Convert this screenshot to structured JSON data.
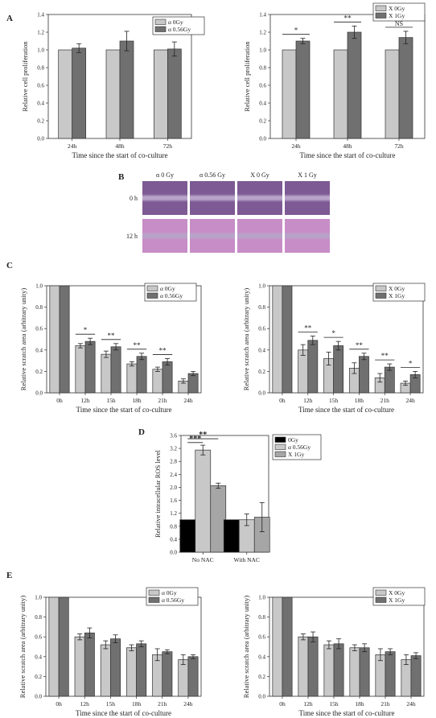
{
  "panel_labels": {
    "A": "A",
    "B": "B",
    "C": "C",
    "D": "D",
    "E": "E"
  },
  "colors": {
    "light": "#c8c8c8",
    "mid": "#a6a6a6",
    "dark": "#707070",
    "black": "#000000"
  },
  "chart_data": [
    {
      "id": "A-left",
      "type": "bar",
      "panel": "A",
      "categories": [
        "24h",
        "48h",
        "72h"
      ],
      "series": [
        {
          "name": "α 0Gy",
          "values": [
            1.0,
            1.0,
            1.0
          ],
          "errors": [
            0,
            0,
            0
          ],
          "color": "light"
        },
        {
          "name": "α 0.56Gy",
          "values": [
            1.02,
            1.1,
            1.01
          ],
          "errors": [
            0.05,
            0.11,
            0.08
          ],
          "color": "dark"
        }
      ],
      "ylabel": "Relative cell proliferation",
      "xlabel": "Time since the start of co-culture",
      "ylim": [
        0,
        1.4
      ],
      "yticks": [
        "0.0",
        "0.2",
        "0.4",
        "0.6",
        "0.8",
        "1.0",
        "1.2",
        "1.4"
      ],
      "annotations": [],
      "legend": "top-right"
    },
    {
      "id": "A-right",
      "type": "bar",
      "panel": "A",
      "categories": [
        "24h",
        "48h",
        "72h"
      ],
      "series": [
        {
          "name": "X 0Gy",
          "values": [
            1.0,
            1.0,
            1.0
          ],
          "errors": [
            0,
            0,
            0
          ],
          "color": "light"
        },
        {
          "name": "X 1Gy",
          "values": [
            1.1,
            1.2,
            1.14
          ],
          "errors": [
            0.03,
            0.07,
            0.07
          ],
          "color": "dark"
        }
      ],
      "ylabel": "Relative cell proliferation",
      "xlabel": "Time since the start of co-culture",
      "ylim": [
        0,
        1.4
      ],
      "yticks": [
        "0.0",
        "0.2",
        "0.4",
        "0.6",
        "0.8",
        "1.0",
        "1.2",
        "1.4"
      ],
      "annotations": [
        {
          "category": 0,
          "text": "*"
        },
        {
          "category": 1,
          "text": "**"
        },
        {
          "category": 2,
          "text": "NS"
        }
      ],
      "legend": "top-right"
    },
    {
      "id": "C-left",
      "type": "bar",
      "panel": "C",
      "categories": [
        "0h",
        "12h",
        "15h",
        "18h",
        "21h",
        "24h"
      ],
      "series": [
        {
          "name": "α 0Gy",
          "values": [
            1.0,
            0.44,
            0.36,
            0.27,
            0.22,
            0.11
          ],
          "errors": [
            0,
            0.02,
            0.03,
            0.02,
            0.02,
            0.02
          ],
          "color": "light"
        },
        {
          "name": "α 0.56Gy",
          "values": [
            1.0,
            0.48,
            0.43,
            0.34,
            0.29,
            0.18
          ],
          "errors": [
            0,
            0.03,
            0.03,
            0.03,
            0.03,
            0.02
          ],
          "color": "dark"
        }
      ],
      "ylabel": "Relative scratch area (arbitrary unity)",
      "xlabel": "Time since the start of co-culture",
      "ylim": [
        0,
        1.0
      ],
      "yticks": [
        "0.0",
        "0.2",
        "0.4",
        "0.6",
        "0.8",
        "1.0"
      ],
      "annotations": [
        {
          "category": 1,
          "text": "*"
        },
        {
          "category": 2,
          "text": "**"
        },
        {
          "category": 3,
          "text": "**"
        },
        {
          "category": 4,
          "text": "**"
        }
      ],
      "legend": "top-right"
    },
    {
      "id": "C-right",
      "type": "bar",
      "panel": "C",
      "categories": [
        "0h",
        "12h",
        "15h",
        "18h",
        "21h",
        "24h"
      ],
      "series": [
        {
          "name": "X 0Gy",
          "values": [
            1.0,
            0.4,
            0.32,
            0.23,
            0.14,
            0.09
          ],
          "errors": [
            0,
            0.05,
            0.06,
            0.05,
            0.04,
            0.02
          ],
          "color": "light"
        },
        {
          "name": "X 1Gy",
          "values": [
            1.0,
            0.49,
            0.44,
            0.34,
            0.24,
            0.17
          ],
          "errors": [
            0,
            0.04,
            0.04,
            0.03,
            0.03,
            0.03
          ],
          "color": "dark"
        }
      ],
      "ylabel": "Relative scratch area (arbitrary unity)",
      "xlabel": "Time since the start of co-culture",
      "ylim": [
        0,
        1.0
      ],
      "yticks": [
        "0.0",
        "0.2",
        "0.4",
        "0.6",
        "0.8",
        "1.0"
      ],
      "annotations": [
        {
          "category": 1,
          "text": "**"
        },
        {
          "category": 2,
          "text": "*"
        },
        {
          "category": 3,
          "text": "**"
        },
        {
          "category": 4,
          "text": "**"
        },
        {
          "category": 5,
          "text": "*"
        }
      ],
      "legend": "top-right"
    },
    {
      "id": "D",
      "type": "bar",
      "panel": "D",
      "categories": [
        "No NAC",
        "With NAC"
      ],
      "series": [
        {
          "name": "0Gy",
          "values": [
            1.0,
            1.0
          ],
          "errors": [
            0,
            0
          ],
          "color": "black"
        },
        {
          "name": "α 0.56Gy",
          "values": [
            3.15,
            1.0
          ],
          "errors": [
            0.15,
            0.18
          ],
          "color": "light"
        },
        {
          "name": "X 1Gy",
          "values": [
            2.05,
            1.08
          ],
          "errors": [
            0.08,
            0.45
          ],
          "color": "mid"
        }
      ],
      "ylabel": "Relative intracellular ROS level",
      "xlabel": "",
      "ylim": [
        0,
        3.6
      ],
      "yticks": [
        "0.0",
        "0.4",
        "0.8",
        "1.2",
        "1.6",
        "2.0",
        "2.4",
        "2.8",
        "3.2",
        "3.6"
      ],
      "brackets": [
        {
          "text": "***",
          "from": 0,
          "to": 1,
          "level": 3.38
        },
        {
          "text": "**",
          "from": 0,
          "to": 2,
          "level": 3.5
        }
      ],
      "legend": "top-right"
    },
    {
      "id": "E-left",
      "type": "bar",
      "panel": "E",
      "categories": [
        "0h",
        "12h",
        "15h",
        "18h",
        "21h",
        "24h"
      ],
      "series": [
        {
          "name": "α 0Gy",
          "values": [
            1.0,
            0.6,
            0.52,
            0.49,
            0.42,
            0.37
          ],
          "errors": [
            0,
            0.03,
            0.04,
            0.03,
            0.06,
            0.05
          ],
          "color": "light"
        },
        {
          "name": "α 0.56Gy",
          "values": [
            1.0,
            0.64,
            0.58,
            0.53,
            0.45,
            0.4
          ],
          "errors": [
            0,
            0.05,
            0.04,
            0.03,
            0.02,
            0.02
          ],
          "color": "dark"
        }
      ],
      "ylabel": "Relative scratch area (arbitrary unity)",
      "xlabel": "Time since the start of co-culture",
      "ylim": [
        0,
        1.0
      ],
      "yticks": [
        "0.0",
        "0.2",
        "0.4",
        "0.6",
        "0.8",
        "1.0"
      ],
      "annotations": [],
      "legend": "top-right"
    },
    {
      "id": "E-right",
      "type": "bar",
      "panel": "E",
      "categories": [
        "0h",
        "12h",
        "15h",
        "18h",
        "21h",
        "24h"
      ],
      "series": [
        {
          "name": "X 0Gy",
          "values": [
            1.0,
            0.6,
            0.52,
            0.49,
            0.42,
            0.37
          ],
          "errors": [
            0,
            0.03,
            0.04,
            0.03,
            0.06,
            0.05
          ],
          "color": "light"
        },
        {
          "name": "X 1Gy",
          "values": [
            1.0,
            0.6,
            0.53,
            0.49,
            0.45,
            0.41
          ],
          "errors": [
            0,
            0.05,
            0.05,
            0.04,
            0.03,
            0.03
          ],
          "color": "dark"
        }
      ],
      "ylabel": "Relative scratch area (arbitrary unity)",
      "xlabel": "Time since the start of co-culture",
      "ylim": [
        0,
        1.0
      ],
      "yticks": [
        "0.0",
        "0.2",
        "0.4",
        "0.6",
        "0.8",
        "1.0"
      ],
      "annotations": [],
      "legend": "top-right"
    }
  ],
  "micrograph": {
    "columns": [
      "α 0 Gy",
      "α 0.56 Gy",
      "X 0 Gy",
      "X 1 Gy"
    ],
    "rows": [
      "0 h",
      "12 h"
    ],
    "colors": {
      "top": "#7d5a93",
      "bottom": "#c78dc6",
      "gap": "#b9a3c9"
    }
  }
}
